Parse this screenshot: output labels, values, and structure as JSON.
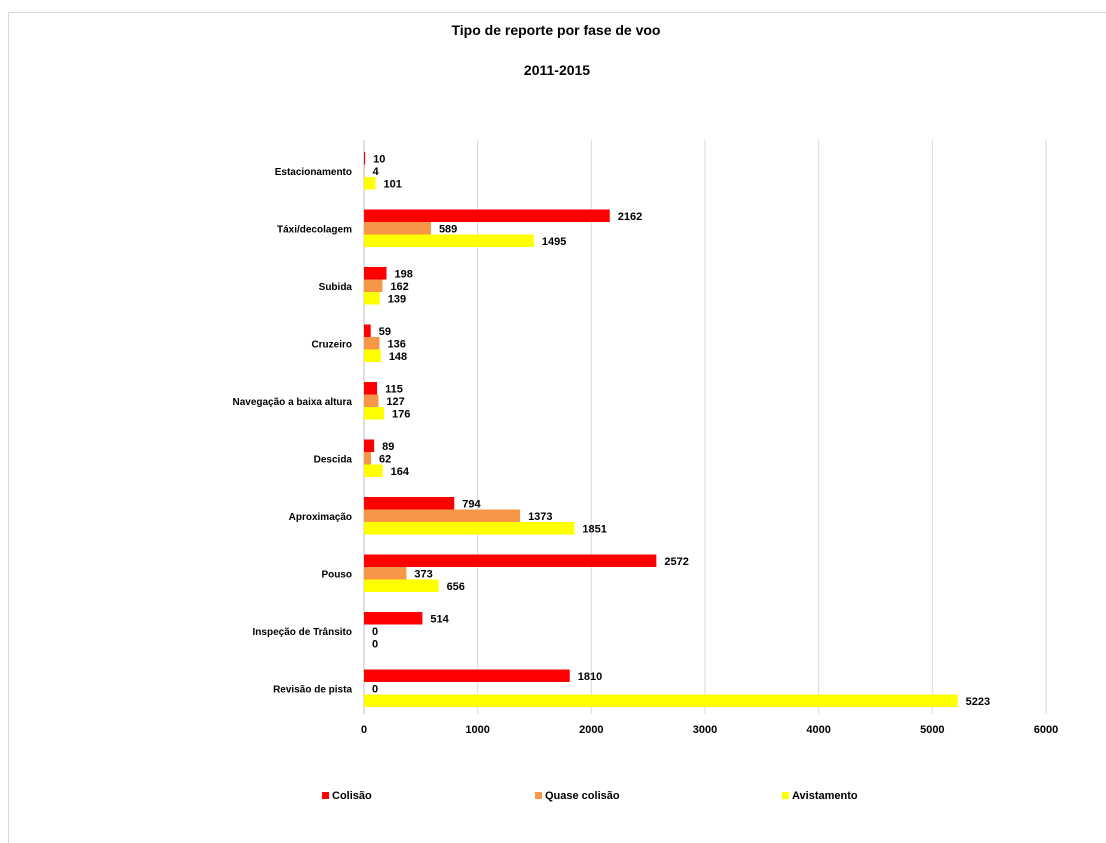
{
  "chart_data": {
    "type": "bar",
    "orientation": "horizontal",
    "title": "Tipo de reporte por fase de voo",
    "subtitle": "2011-2015",
    "categories": [
      "Estacionamento",
      "Táxi/decolagem",
      "Subida",
      "Cruzeiro",
      "Navegação a baixa altura",
      "Descida",
      "Aproximação",
      "Pouso",
      "Inspeção de Trânsito",
      "Revisão de pista"
    ],
    "series": [
      {
        "name": "Colisão",
        "color": "#ff0000",
        "values": [
          10,
          2162,
          198,
          59,
          115,
          89,
          794,
          2572,
          514,
          1810
        ]
      },
      {
        "name": "Quase colisão",
        "color": "#f79646",
        "values": [
          4,
          589,
          162,
          136,
          127,
          62,
          1373,
          373,
          0,
          0
        ]
      },
      {
        "name": "Avistamento",
        "color": "#ffff00",
        "values": [
          101,
          1495,
          139,
          148,
          176,
          164,
          1851,
          656,
          0,
          5223
        ]
      }
    ],
    "xlim": [
      0,
      6000
    ],
    "ticks": [
      "0",
      "1000",
      "2000",
      "3000",
      "4000",
      "5000",
      "6000"
    ],
    "grid": true,
    "data_labels": true,
    "legend_position": "bottom"
  }
}
